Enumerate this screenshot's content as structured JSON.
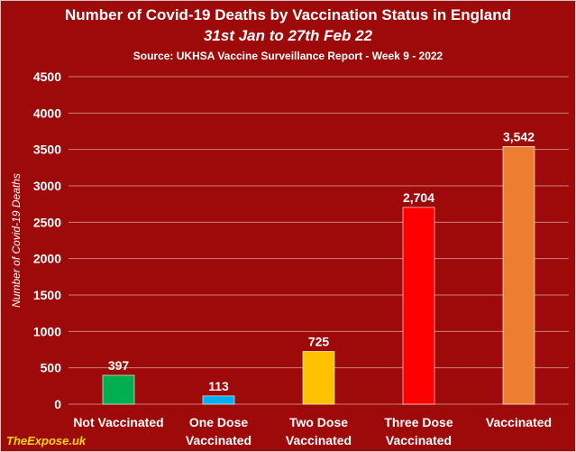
{
  "header": {
    "title": "Number of Covid-19 Deaths by Vaccination Status in England",
    "subtitle": "31st Jan to 27th Feb 22",
    "source": "Source: UKHSA Vaccine Surveillance Report - Week 9 - 2022"
  },
  "watermark": "TheExpose.uk",
  "colors": {
    "background": "#9e0a0a",
    "gridline": "#c98080",
    "text": "#ffffff",
    "watermark": "#ffd800"
  },
  "chart_data": {
    "type": "bar",
    "title": "Number of Covid-19 Deaths by Vaccination Status in England",
    "xlabel": "",
    "ylabel": "Number of Covid-19 Deaths",
    "ylim": [
      0,
      4500
    ],
    "yticks": [
      0,
      500,
      1000,
      1500,
      2000,
      2500,
      3000,
      3500,
      4000,
      4500
    ],
    "grid": true,
    "legend": "none",
    "categories": [
      [
        "Not Vaccinated"
      ],
      [
        "One Dose",
        "Vaccinated"
      ],
      [
        "Two Dose",
        "Vaccinated"
      ],
      [
        "Three Dose",
        "Vaccinated"
      ],
      [
        "Vaccinated"
      ]
    ],
    "values": [
      397,
      113,
      725,
      2704,
      3542
    ],
    "value_labels": [
      "397",
      "113",
      "725",
      "2,704",
      "3,542"
    ],
    "bar_colors": [
      "#00b050",
      "#00b0f0",
      "#ffc000",
      "#ff0000",
      "#ed7d31"
    ]
  }
}
